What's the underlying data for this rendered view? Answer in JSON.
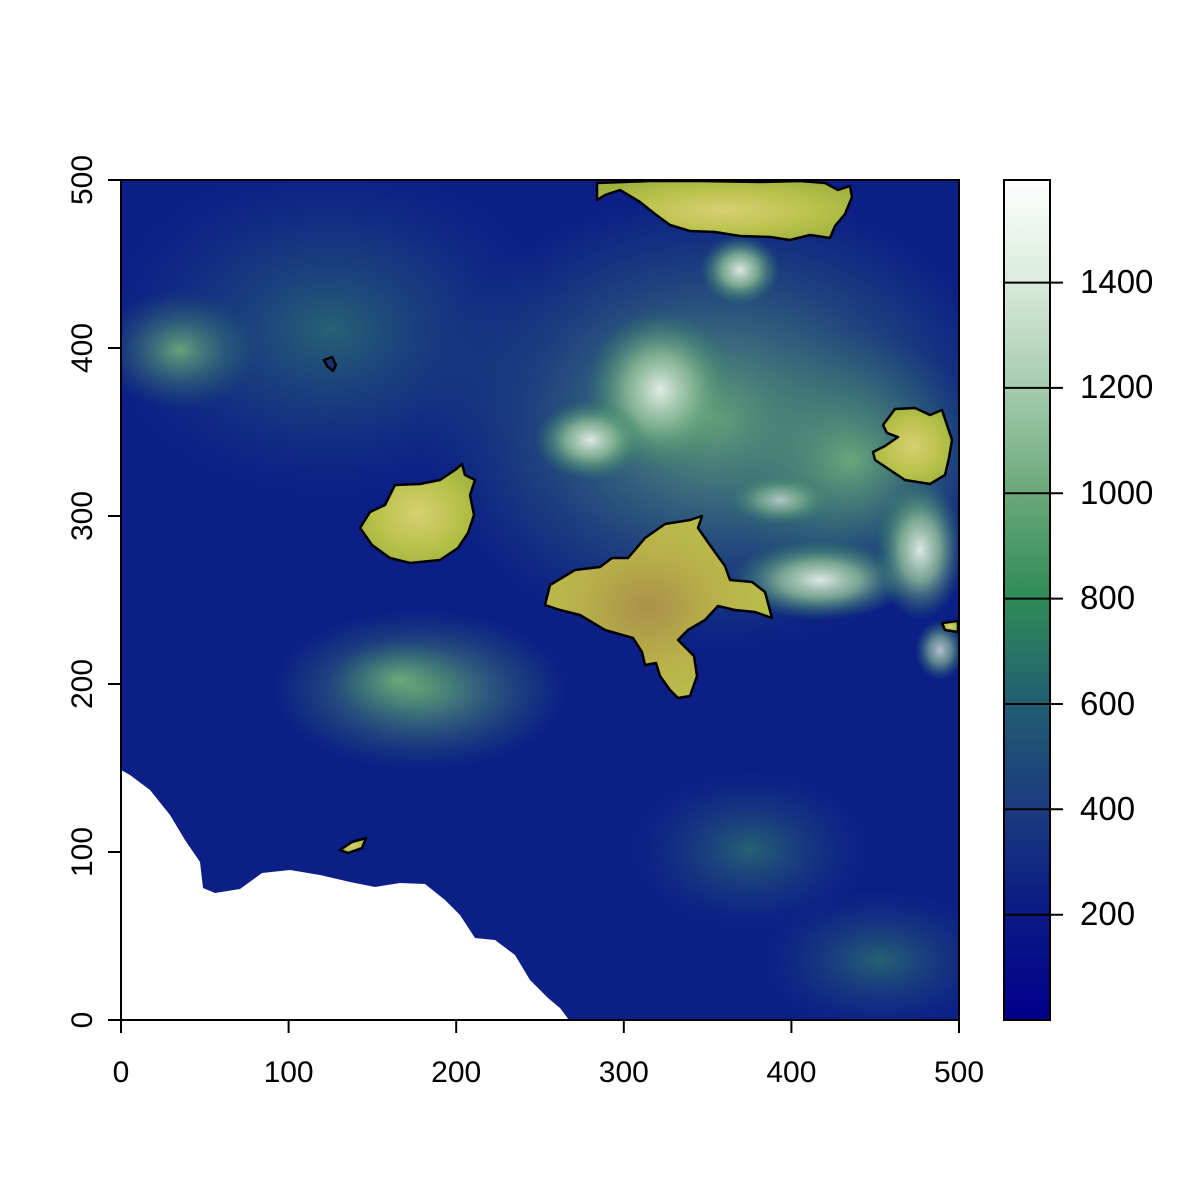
{
  "chart_data": {
    "type": "heatmap",
    "title": "",
    "xlabel": "",
    "ylabel": "",
    "xlim": [
      0,
      500
    ],
    "ylim": [
      0,
      500
    ],
    "x_ticks": [
      "0",
      "100",
      "200",
      "300",
      "400",
      "500"
    ],
    "y_ticks": [
      "0",
      "100",
      "200",
      "300",
      "400",
      "500"
    ],
    "colorbar": {
      "range": [
        0,
        1590
      ],
      "ticks": [
        "200",
        "400",
        "600",
        "800",
        "1000",
        "1200",
        "1400"
      ],
      "colors": [
        "#00008b",
        "#1a3a7e",
        "#215e72",
        "#2e8b57",
        "#7fb489",
        "#cfe2d2",
        "#ffffff"
      ]
    },
    "highlight_fill": "#b8c24a",
    "highlight_regions": [
      "north-top-center",
      "east-small",
      "west-center",
      "central-large",
      "east-edge-sliver",
      "south-small",
      "tiny-north-west"
    ],
    "no_data_region": "coastal-south-west (white)"
  }
}
